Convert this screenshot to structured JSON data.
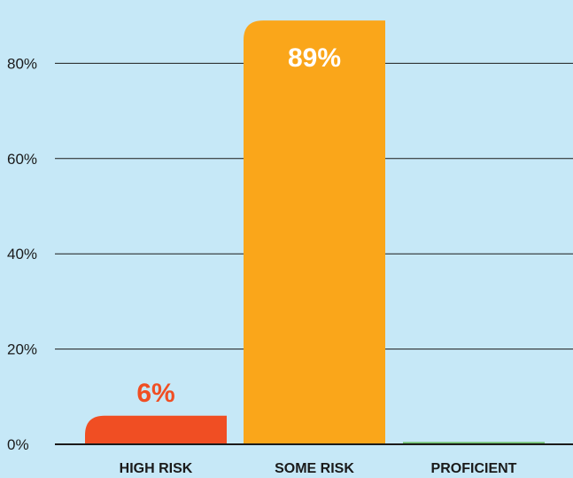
{
  "chart_data": {
    "type": "bar",
    "categories": [
      "HIGH RISK",
      "SOME RISK",
      "PROFICIENT"
    ],
    "values": [
      6,
      89,
      0.5
    ],
    "data_labels": [
      "6%",
      "89%",
      ""
    ],
    "bar_colors": [
      "#f04e23",
      "#faa61a",
      "#6cc06a"
    ],
    "label_colors": [
      "#f04e23",
      "#ffffff",
      "#1a1a1a"
    ],
    "label_positions": [
      "above",
      "inside",
      "none"
    ],
    "ylim": [
      0,
      92
    ],
    "yticks": [
      0,
      20,
      40,
      60,
      80
    ],
    "ytick_labels": [
      "0%",
      "20%",
      "40%",
      "60%",
      "80%"
    ],
    "title": "",
    "xlabel": "",
    "ylabel": "",
    "grid": true,
    "legend": "none",
    "background": "#c6e8f7",
    "grid_color": "#1a1a1a"
  }
}
